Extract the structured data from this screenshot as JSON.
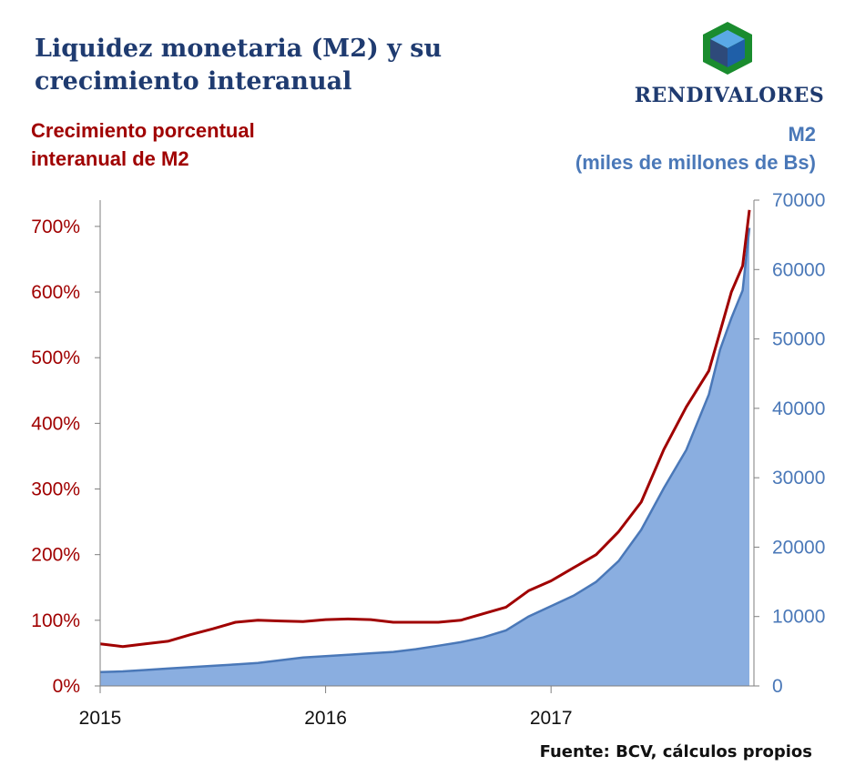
{
  "header": {
    "title": "Liquidez monetaria (M2) y su crecimiento interanual",
    "brand": "RENDIVALORES"
  },
  "axes": {
    "left_label": "Crecimiento porcentual interanual de M2",
    "right_label_line1": "M2",
    "right_label_line2": "(miles de millones de Bs)"
  },
  "footer": {
    "source": "Fuente: BCV, cálculos propios"
  },
  "colors": {
    "title": "#1f3b70",
    "growth_line": "#a00000",
    "m2_area": "#8aaee0",
    "m2_line": "#4a78b8",
    "axis": "#7f7f7f"
  },
  "chart_data": {
    "type": "area",
    "x_ticks": [
      "2015",
      "2016",
      "2017"
    ],
    "x_tick_values": [
      2015.0,
      2016.0,
      2017.0
    ],
    "xlim": [
      2015.0,
      2017.9
    ],
    "left_axis": {
      "ticks": [
        "0%",
        "100%",
        "200%",
        "300%",
        "400%",
        "500%",
        "600%",
        "700%"
      ],
      "tick_values": [
        0,
        100,
        200,
        300,
        400,
        500,
        600,
        700
      ],
      "ylim": [
        0,
        740
      ]
    },
    "right_axis": {
      "ticks": [
        "0",
        "10000",
        "20000",
        "30000",
        "40000",
        "50000",
        "60000",
        "70000"
      ],
      "tick_values": [
        0,
        10000,
        20000,
        30000,
        40000,
        50000,
        60000,
        70000
      ],
      "ylim": [
        0,
        70000
      ]
    },
    "x": [
      2015.0,
      2015.1,
      2015.2,
      2015.3,
      2015.4,
      2015.5,
      2015.6,
      2015.7,
      2015.8,
      2015.9,
      2016.0,
      2016.1,
      2016.2,
      2016.3,
      2016.4,
      2016.5,
      2016.6,
      2016.7,
      2016.8,
      2016.9,
      2017.0,
      2017.1,
      2017.2,
      2017.3,
      2017.4,
      2017.5,
      2017.6,
      2017.7,
      2017.75,
      2017.8,
      2017.85,
      2017.88
    ],
    "series": [
      {
        "values": [
          64,
          60,
          64,
          68,
          78,
          87,
          97,
          100,
          99,
          98,
          101,
          102,
          101,
          97,
          97,
          97,
          100,
          110,
          120,
          145,
          160,
          180,
          200,
          235,
          280,
          360,
          425,
          480,
          540,
          600,
          640,
          725
        ],
        "axis": "left",
        "style": "line"
      },
      {
        "values": [
          2000,
          2100,
          2300,
          2500,
          2700,
          2900,
          3100,
          3300,
          3700,
          4100,
          4300,
          4500,
          4700,
          4900,
          5300,
          5800,
          6300,
          7000,
          8000,
          10000,
          11500,
          13000,
          15000,
          18000,
          22500,
          28500,
          34000,
          42000,
          48500,
          53000,
          57000,
          66000
        ],
        "axis": "right",
        "style": "area"
      }
    ]
  }
}
